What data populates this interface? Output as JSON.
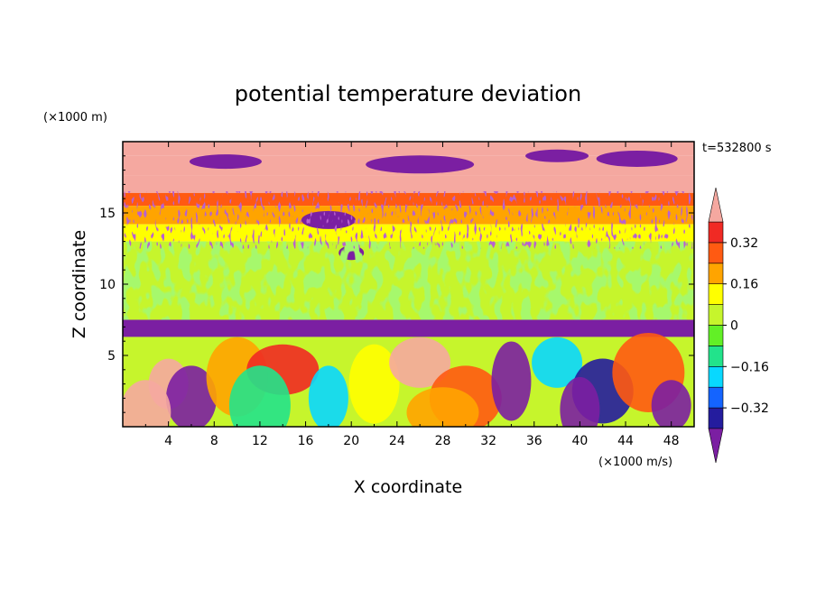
{
  "chart_data": {
    "type": "heatmap",
    "title": "potential temperature deviation",
    "xlabel": "X coordinate",
    "ylabel": "Z coordinate",
    "x_units": "(×1000 m/s)",
    "y_units": "(×1000 m)",
    "time_label": "t=532800 s",
    "xlim": [
      0,
      50
    ],
    "ylim": [
      0,
      20
    ],
    "x_ticks": [
      4,
      8,
      12,
      16,
      20,
      24,
      28,
      32,
      36,
      40,
      44,
      48
    ],
    "y_ticks": [
      5,
      10,
      15
    ],
    "colorbar": {
      "labels": [
        {
          "text": "0.32",
          "value": 0.32
        },
        {
          "text": "0.16",
          "value": 0.16
        },
        {
          "text": "0",
          "value": 0
        },
        {
          "text": "−0.16",
          "value": -0.16
        },
        {
          "text": "−0.32",
          "value": -0.32
        }
      ],
      "levels": [
        -0.4,
        -0.32,
        -0.24,
        -0.16,
        -0.08,
        0,
        0.08,
        0.16,
        0.24,
        0.32,
        0.4
      ],
      "colors": [
        "#7b1fa2",
        "#241c9e",
        "#1464ff",
        "#08d8ff",
        "#22e38b",
        "#62f026",
        "#c6f52c",
        "#ffff00",
        "#ffa400",
        "#ff5a12",
        "#f02a24",
        "#f5a8a0"
      ],
      "extend": "both"
    },
    "bands": [
      {
        "z": [
          19.0,
          20.0
        ],
        "value": 0.45
      },
      {
        "z": [
          17.6,
          19.0
        ],
        "value": 0.45
      },
      {
        "z": [
          16.4,
          17.6
        ],
        "value": 0.45
      },
      {
        "z": [
          15.5,
          16.4
        ],
        "value": 0.28
      },
      {
        "z": [
          14.2,
          15.5
        ],
        "value": 0.22
      },
      {
        "z": [
          13.0,
          14.2
        ],
        "value": 0.12
      },
      {
        "z": [
          7.5,
          13.0
        ],
        "value": 0.02
      },
      {
        "z": [
          6.3,
          7.5
        ],
        "value": -0.45
      },
      {
        "z": [
          0.0,
          6.3
        ],
        "value": 0.05
      }
    ]
  }
}
